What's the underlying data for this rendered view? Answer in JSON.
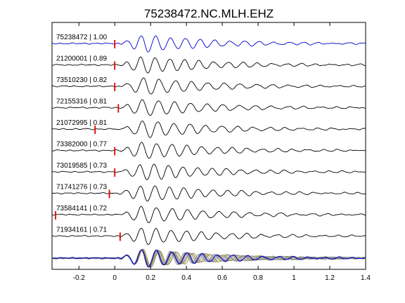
{
  "chart_data": {
    "type": "line",
    "title": "75238472.NC.MLH.EHZ",
    "xlabel": "",
    "ylabel": "",
    "xlim": [
      -0.35,
      1.4
    ],
    "x_ticks": [
      -0.2,
      0,
      0.2,
      0.4,
      0.6,
      0.8,
      1,
      1.2,
      1.4
    ],
    "x_tick_labels": [
      "-0.2",
      "0",
      "0.2",
      "0.4",
      "0.6",
      "0.8",
      "1",
      "1.2",
      "1.4"
    ],
    "grid": false,
    "colors": {
      "template": "#0000cc",
      "trace": "#000000",
      "stack": "#808080",
      "pick": "#e00000",
      "stack_overlay": "#c8b400"
    },
    "traces": [
      {
        "label": "75238472 | 1.00",
        "id": "75238472",
        "cc": 1.0,
        "pick_time": 0.0,
        "template": true
      },
      {
        "label": "21200001 | 0.89",
        "id": "21200001",
        "cc": 0.89,
        "pick_time": 0.0
      },
      {
        "label": "73510230 | 0.82",
        "id": "73510230",
        "cc": 0.82,
        "pick_time": 0.0
      },
      {
        "label": "72155316 | 0.81",
        "id": "72155316",
        "cc": 0.81,
        "pick_time": 0.02
      },
      {
        "label": "21072995 | 0.81",
        "id": "21072995",
        "cc": 0.81,
        "pick_time": -0.11
      },
      {
        "label": "73382000 | 0.77",
        "id": "73382000",
        "cc": 0.77,
        "pick_time": 0.0
      },
      {
        "label": "73019585 | 0.73",
        "id": "73019585",
        "cc": 0.73,
        "pick_time": 0.0
      },
      {
        "label": "71741276 | 0.73",
        "id": "71741276",
        "cc": 0.73,
        "pick_time": -0.03
      },
      {
        "label": "73584141 | 0.72",
        "id": "73584141",
        "cc": 0.72,
        "pick_time": -0.33
      },
      {
        "label": "71934161 | 0.71",
        "id": "71934161",
        "cc": 0.71,
        "pick_time": 0.03
      }
    ],
    "waveform_model": {
      "onset": 0.02,
      "dominant_freq_hz": 11.5,
      "peak_time": 0.17,
      "envelope_decay": 2.4,
      "noise_level": 0.04
    }
  }
}
